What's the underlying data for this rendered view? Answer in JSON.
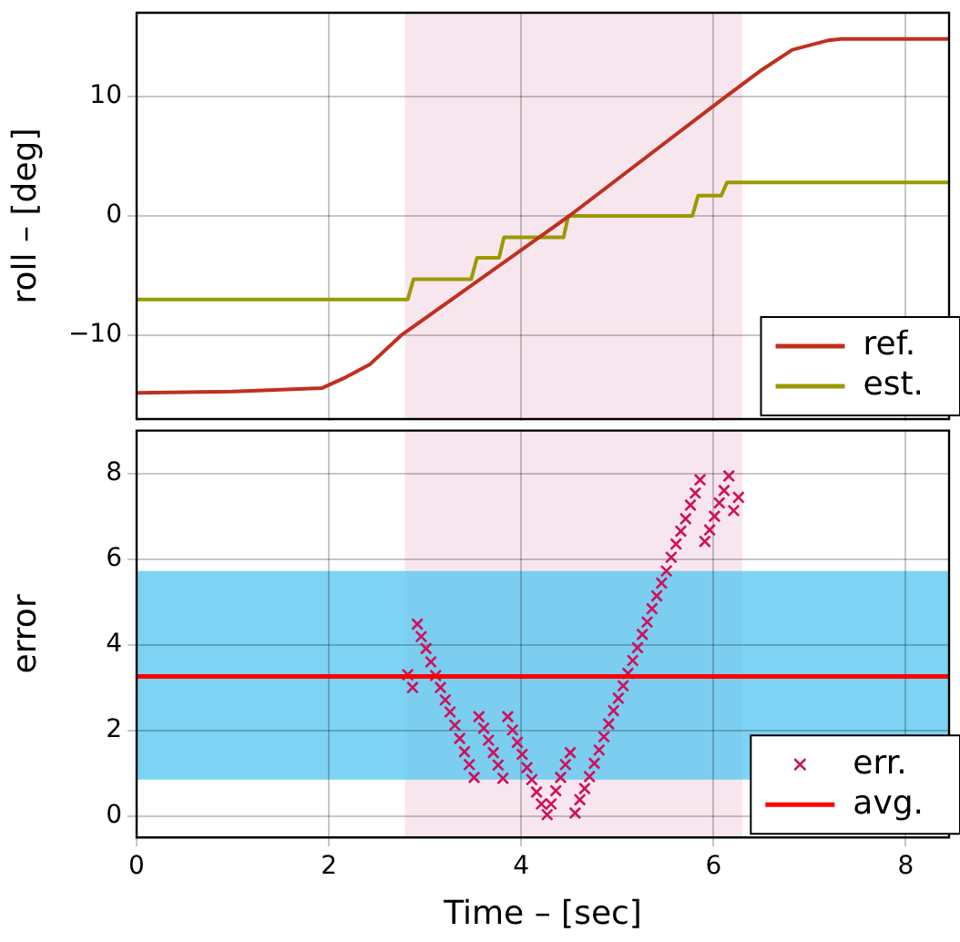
{
  "chart_data": [
    {
      "type": "line",
      "ylabel": "roll – [deg]",
      "xlim": [
        0,
        8.45
      ],
      "xticks": [
        0,
        2,
        4,
        6,
        8
      ],
      "ylim": [
        -17,
        17
      ],
      "yticks": [
        {
          "value": -10,
          "label": "−10"
        },
        0,
        10
      ],
      "tick_labels": "y",
      "grid": true,
      "legend": "bottom right",
      "marker": "none",
      "line_style": "solid",
      "bands": [
        {
          "axis": "x",
          "from": 2.79,
          "to": 6.3,
          "color": "#f8e6ee"
        }
      ],
      "series": [
        {
          "name": "ref.",
          "type": "line",
          "color": "#c0301f",
          "x": [
            0,
            1,
            1.93,
            2.15,
            2.43,
            2.75,
            4.5,
            6.13,
            6.48,
            6.82,
            7.2,
            7.33,
            8.45
          ],
          "values": [
            -14.8,
            -14.7,
            -14.4,
            -13.6,
            -12.4,
            -10,
            0,
            10,
            12.1,
            13.9,
            14.7,
            14.8,
            14.8
          ]
        },
        {
          "name": "est.",
          "type": "line",
          "color": "#9a9a00",
          "x": [
            0,
            2.82,
            2.88,
            3.48,
            3.54,
            3.77,
            3.82,
            4.44,
            4.49,
            5.78,
            5.84,
            6.08,
            6.14,
            8.45
          ],
          "values": [
            -7,
            -7,
            -5.3,
            -5.3,
            -3.5,
            -3.5,
            -1.8,
            -1.8,
            0,
            0,
            1.7,
            1.7,
            2.8,
            2.8
          ]
        }
      ]
    },
    {
      "type": "scatter",
      "xlabel": "Time – [sec]",
      "ylabel": "error",
      "xlim": [
        0,
        8.45
      ],
      "xticks": [
        0,
        2,
        4,
        6,
        8
      ],
      "ylim": [
        -0.5,
        9
      ],
      "yticks": [
        0,
        2,
        4,
        6,
        8
      ],
      "grid": true,
      "legend": "bottom right",
      "marker": "cross",
      "bands": [
        {
          "axis": "x",
          "from": 2.79,
          "to": 6.3,
          "color": "#f8e6ee"
        },
        {
          "axis": "y",
          "from": 0.85,
          "to": 5.72,
          "color": "#5bc8f0"
        }
      ],
      "ref_lines": [
        {
          "axis": "y",
          "value": 3.26,
          "label": "avg.",
          "color": "#ff0000"
        }
      ],
      "series": [
        {
          "name": "err.",
          "color": "#d0105a",
          "x": [
            2.82,
            2.87,
            2.92,
            2.96,
            3.01,
            3.06,
            3.11,
            3.16,
            3.21,
            3.26,
            3.31,
            3.36,
            3.41,
            3.46,
            3.51,
            3.56,
            3.61,
            3.66,
            3.71,
            3.76,
            3.81,
            3.86,
            3.91,
            3.96,
            4.01,
            4.06,
            4.11,
            4.16,
            4.21,
            4.27,
            4.31,
            4.36,
            4.41,
            4.46,
            4.51,
            4.56,
            4.61,
            4.66,
            4.71,
            4.76,
            4.81,
            4.86,
            4.91,
            4.96,
            5.01,
            5.06,
            5.11,
            5.16,
            5.21,
            5.26,
            5.31,
            5.36,
            5.41,
            5.46,
            5.51,
            5.56,
            5.61,
            5.66,
            5.71,
            5.76,
            5.81,
            5.86,
            5.91,
            5.96,
            6.01,
            6.06,
            6.11,
            6.16,
            6.21,
            6.26
          ],
          "values": [
            3.3,
            3.0,
            4.48,
            4.19,
            3.91,
            3.6,
            3.28,
            3.0,
            2.71,
            2.43,
            2.12,
            1.81,
            1.5,
            1.2,
            0.9,
            2.32,
            2.05,
            1.77,
            1.48,
            1.19,
            0.88,
            2.32,
            2.01,
            1.72,
            1.44,
            1.13,
            0.85,
            0.56,
            0.28,
            0.03,
            0.28,
            0.59,
            0.9,
            1.2,
            1.48,
            0.07,
            0.38,
            0.64,
            0.92,
            1.23,
            1.54,
            1.85,
            2.15,
            2.46,
            2.75,
            3.04,
            3.33,
            3.63,
            3.93,
            4.24,
            4.53,
            4.84,
            5.14,
            5.44,
            5.72,
            6.04,
            6.35,
            6.65,
            6.94,
            7.26,
            7.54,
            7.85,
            6.41,
            6.68,
            7.0,
            7.31,
            7.6,
            7.94,
            7.13,
            7.44
          ]
        }
      ]
    }
  ]
}
